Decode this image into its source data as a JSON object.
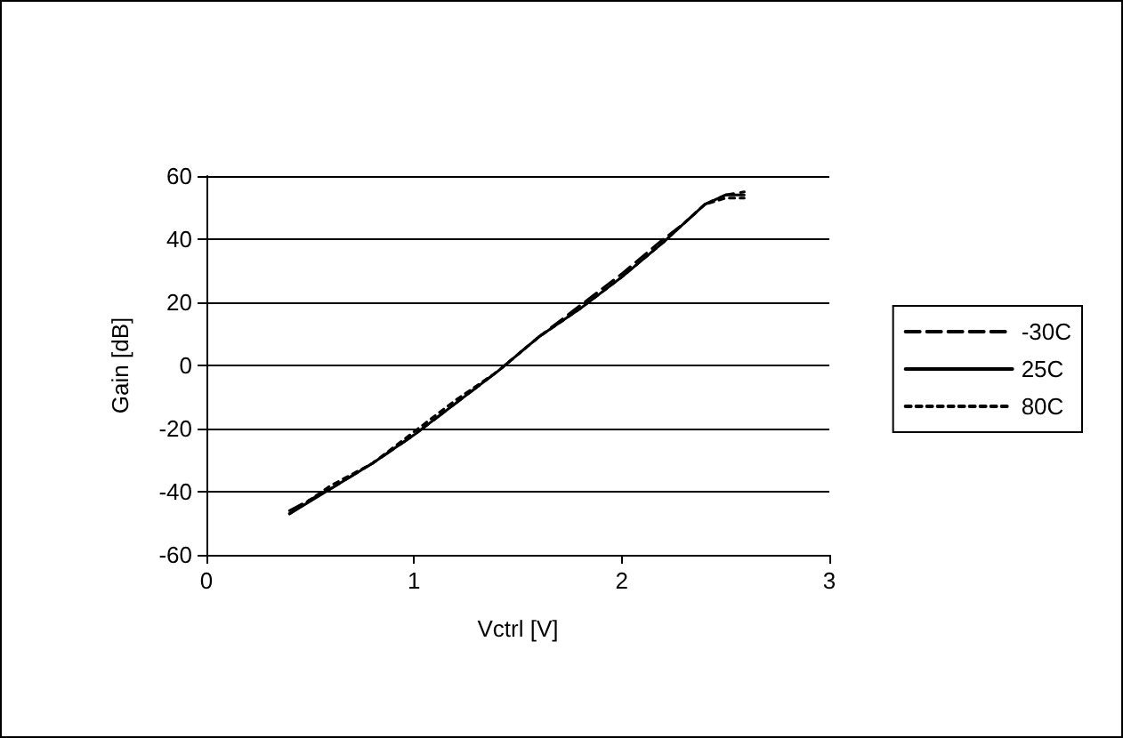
{
  "chart_data": {
    "type": "line",
    "xlabel": "Vctrl [V]",
    "ylabel": "Gain [dB]",
    "xlim": [
      0,
      3
    ],
    "xticks": [
      0,
      1,
      2,
      3
    ],
    "ylim": [
      -60,
      60
    ],
    "yticks": [
      -60,
      -40,
      -20,
      0,
      20,
      40,
      60
    ],
    "grid": "y",
    "legend": "right",
    "marker": "none",
    "x": [
      0.4,
      0.6,
      0.8,
      1.0,
      1.2,
      1.4,
      1.6,
      1.8,
      2.0,
      2.2,
      2.3,
      2.4,
      2.5,
      2.59
    ],
    "series": [
      {
        "name": "-30C",
        "color": "#000000",
        "line_style": "dashed",
        "values": [
          -46,
          -39,
          -31,
          -22,
          -12,
          -2,
          9,
          19,
          29,
          40,
          45,
          51,
          54,
          55
        ]
      },
      {
        "name": "25C",
        "color": "#000000",
        "line_style": "solid",
        "values": [
          -47,
          -39,
          -31,
          -22,
          -12,
          -2,
          9,
          18,
          28,
          39,
          45,
          51,
          54,
          54
        ]
      },
      {
        "name": "80C",
        "color": "#000000",
        "line_style": "dotted",
        "values": [
          -47,
          -38,
          -31,
          -21,
          -11,
          -2,
          9,
          18,
          28,
          39,
          45,
          51,
          53,
          53
        ]
      }
    ]
  }
}
